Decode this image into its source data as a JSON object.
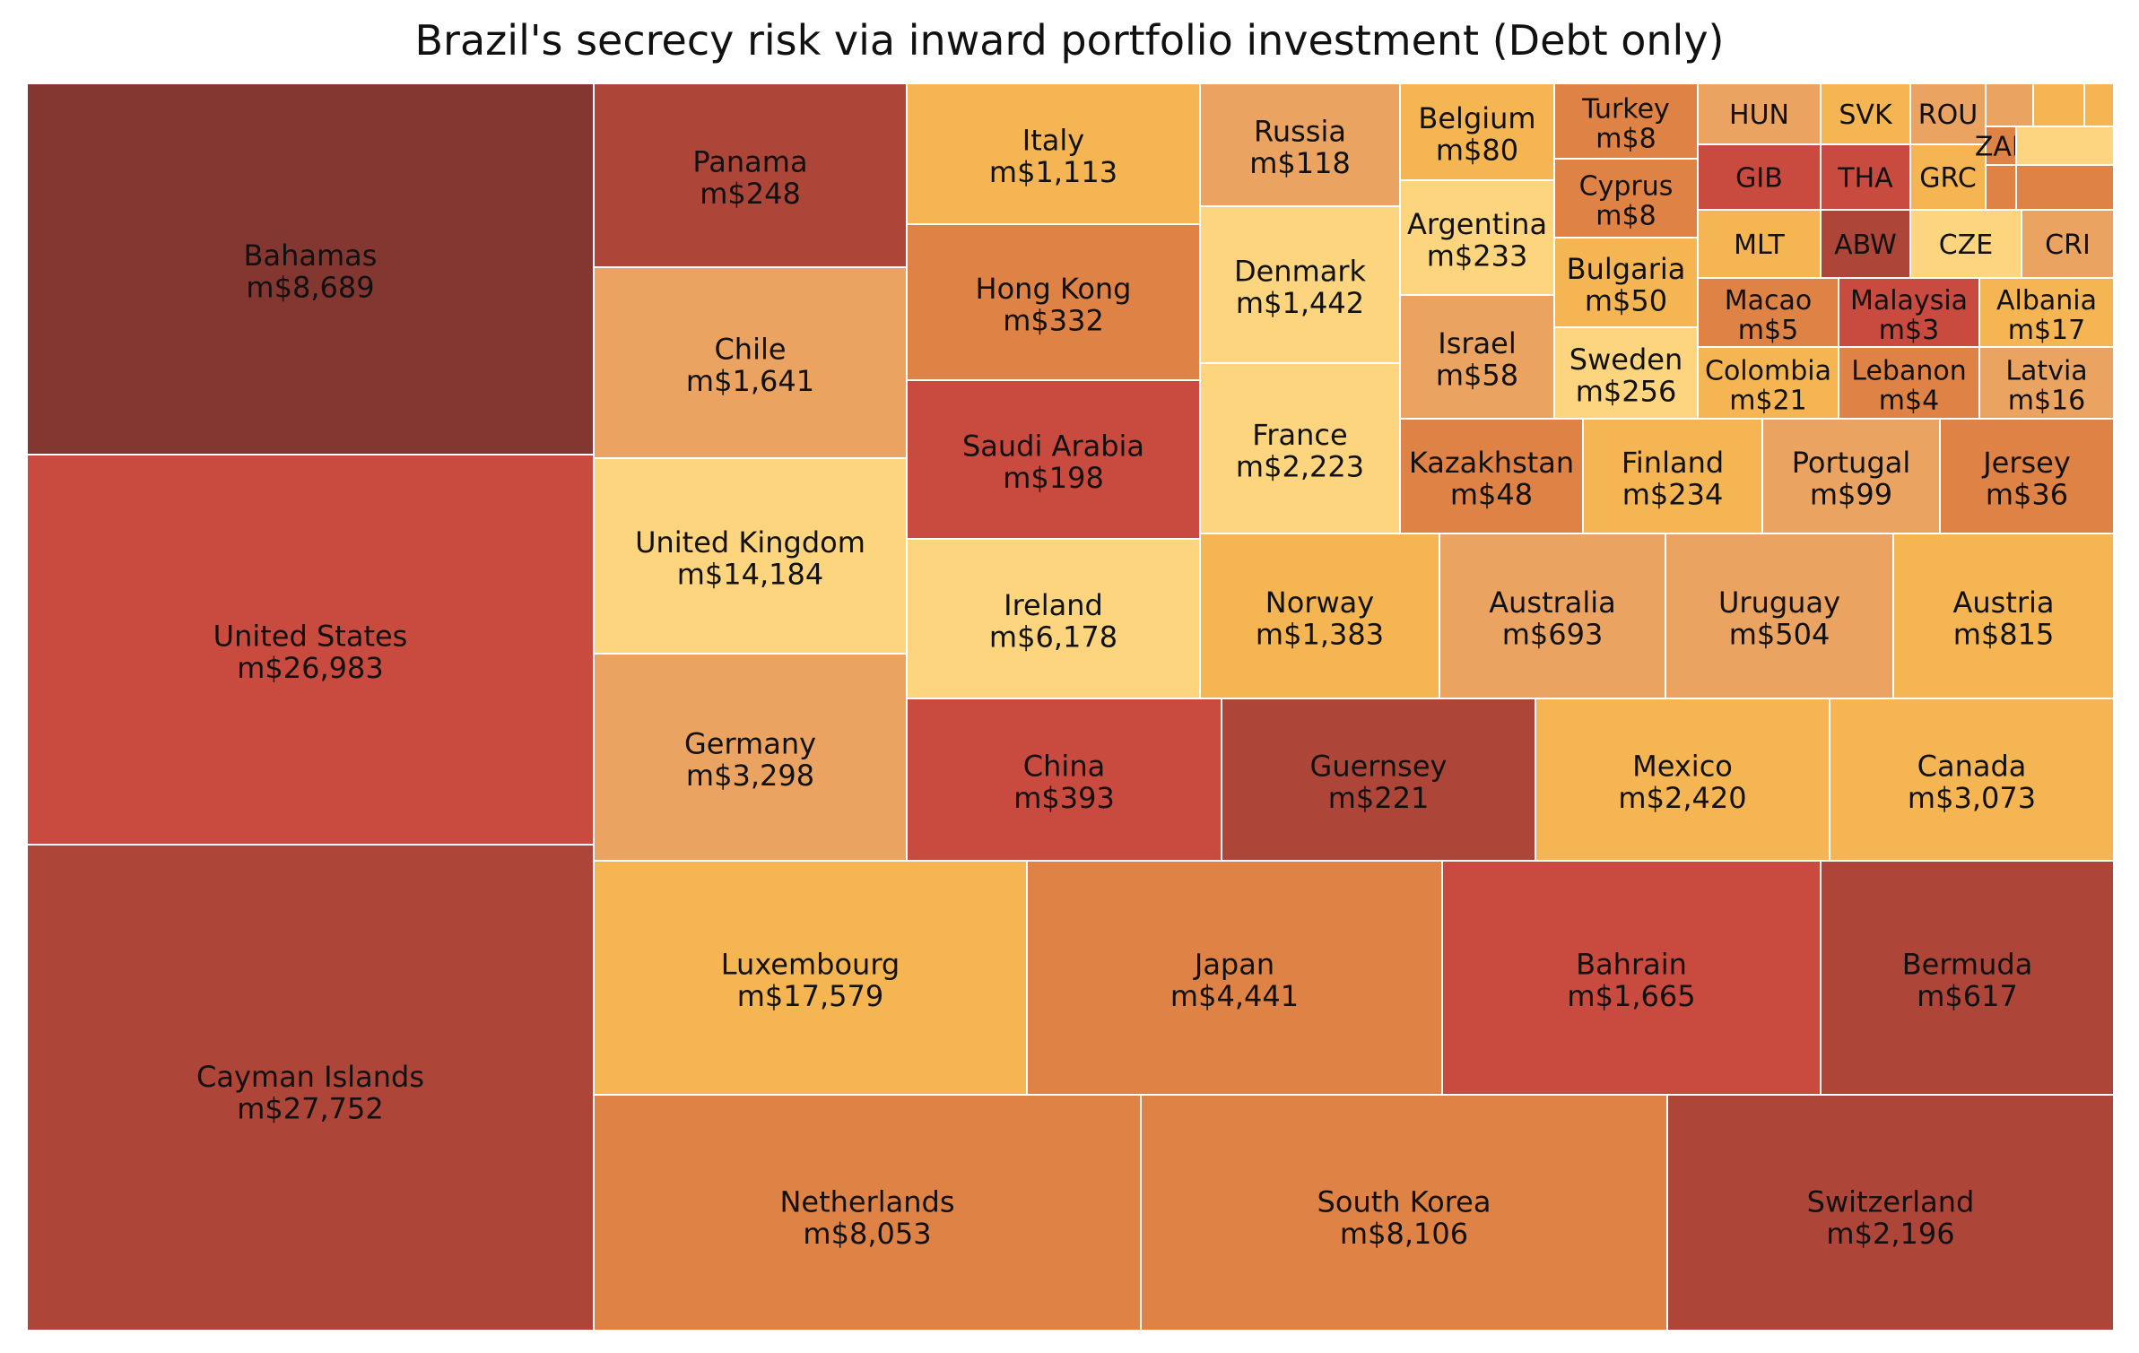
{
  "chart_data": {
    "type": "treemap",
    "title": "Brazil's secrecy risk via inward portfolio investment (Debt only)",
    "value_prefix": "m$",
    "colors": {
      "darkest": "#843631",
      "dark_red": "#ad4538",
      "red": "#c94a3e",
      "orange": "#df8245",
      "light_orange": "#eba362",
      "amber": "#f5b553",
      "yellow": "#fdd57e"
    },
    "rows": [
      {
        "label": "Bahamas",
        "value": 8689
      },
      {
        "label": "United States",
        "value": 26983
      },
      {
        "label": "Cayman Islands",
        "value": 27752
      },
      {
        "label": "Panama",
        "value": 248
      },
      {
        "label": "Chile",
        "value": 1641
      },
      {
        "label": "United Kingdom",
        "value": 14184
      },
      {
        "label": "Germany",
        "value": 3298
      },
      {
        "label": "Italy",
        "value": 1113
      },
      {
        "label": "Hong Kong",
        "value": 332
      },
      {
        "label": "Saudi Arabia",
        "value": 198
      },
      {
        "label": "Ireland",
        "value": 6178
      },
      {
        "label": "Russia",
        "value": 118
      },
      {
        "label": "Denmark",
        "value": 1442
      },
      {
        "label": "France",
        "value": 2223
      },
      {
        "label": "Belgium",
        "value": 80
      },
      {
        "label": "Argentina",
        "value": 233
      },
      {
        "label": "Israel",
        "value": 58
      },
      {
        "label": "Turkey",
        "value": 8
      },
      {
        "label": "Cyprus",
        "value": 8
      },
      {
        "label": "Bulgaria",
        "value": 50
      },
      {
        "label": "Sweden",
        "value": 256
      },
      {
        "label": "HUN",
        "value": null
      },
      {
        "label": "SVK",
        "value": null
      },
      {
        "label": "ROU",
        "value": null
      },
      {
        "label": "GIB",
        "value": null
      },
      {
        "label": "THA",
        "value": null
      },
      {
        "label": "GRC",
        "value": null
      },
      {
        "label": "ZAF",
        "value": null
      },
      {
        "label": "MLT",
        "value": null
      },
      {
        "label": "ABW",
        "value": null
      },
      {
        "label": "CZE",
        "value": null
      },
      {
        "label": "CRI",
        "value": null
      },
      {
        "label": "Macao",
        "value": 5
      },
      {
        "label": "Malaysia",
        "value": 3
      },
      {
        "label": "Albania",
        "value": 17
      },
      {
        "label": "Colombia",
        "value": 21
      },
      {
        "label": "Lebanon",
        "value": 4
      },
      {
        "label": "Latvia",
        "value": 16
      },
      {
        "label": "Kazakhstan",
        "value": 48
      },
      {
        "label": "Finland",
        "value": 234
      },
      {
        "label": "Portugal",
        "value": 99
      },
      {
        "label": "Jersey",
        "value": 36
      },
      {
        "label": "Norway",
        "value": 1383
      },
      {
        "label": "Australia",
        "value": 693
      },
      {
        "label": "Uruguay",
        "value": 504
      },
      {
        "label": "Austria",
        "value": 815
      },
      {
        "label": "China",
        "value": 393
      },
      {
        "label": "Guernsey",
        "value": 221
      },
      {
        "label": "Mexico",
        "value": 2420
      },
      {
        "label": "Canada",
        "value": 3073
      },
      {
        "label": "Luxembourg",
        "value": 17579
      },
      {
        "label": "Japan",
        "value": 4441
      },
      {
        "label": "Bahrain",
        "value": 1665
      },
      {
        "label": "Bermuda",
        "value": 617
      },
      {
        "label": "Netherlands",
        "value": 8053
      },
      {
        "label": "South Korea",
        "value": 8106
      },
      {
        "label": "Switzerland",
        "value": 2196
      },
      {
        "label": "",
        "value": null
      },
      {
        "label": "",
        "value": null
      },
      {
        "label": "",
        "value": null
      },
      {
        "label": "",
        "value": null
      },
      {
        "label": "",
        "value": null
      },
      {
        "label": "",
        "value": null
      }
    ]
  }
}
